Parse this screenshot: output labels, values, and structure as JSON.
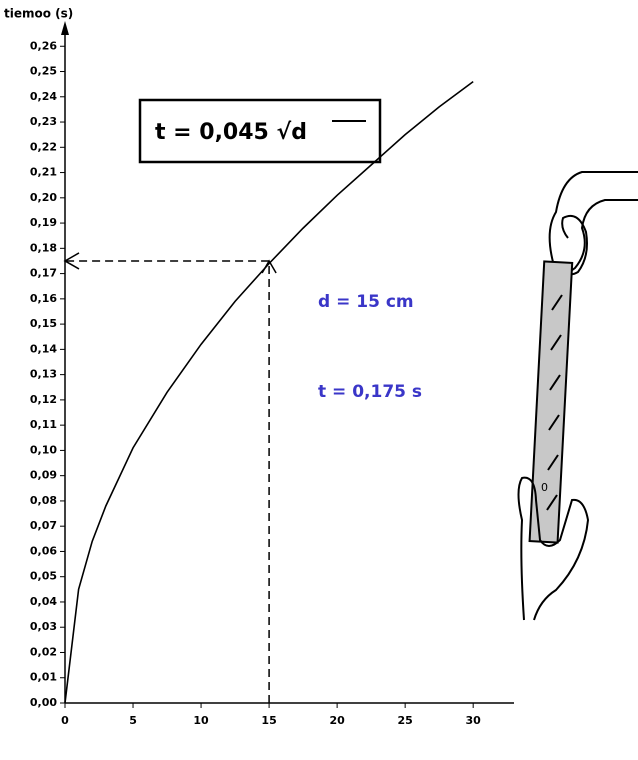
{
  "chart_data": {
    "type": "line",
    "y_label": "tiemoo (s)",
    "x": [
      0,
      1,
      2,
      3,
      5,
      7.5,
      10,
      12.5,
      15,
      17.5,
      20,
      22.5,
      25,
      27.5,
      30
    ],
    "series": [
      {
        "color": "#000000",
        "values": [
          0,
          0.045,
          0.064,
          0.078,
          0.101,
          0.123,
          0.142,
          0.159,
          0.174,
          0.188,
          0.201,
          0.213,
          0.225,
          0.236,
          0.246
        ]
      }
    ],
    "xlim": [
      0,
      33
    ],
    "ylim": [
      0,
      0.27
    ],
    "xticks": [
      0,
      5,
      10,
      15,
      20,
      25,
      30
    ],
    "yticks": [
      {
        "value": 0,
        "label": "0,00"
      },
      {
        "value": 0.01,
        "label": "0,01"
      },
      {
        "value": 0.02,
        "label": "0,02"
      },
      {
        "value": 0.03,
        "label": "0,03"
      },
      {
        "value": 0.04,
        "label": "0,04"
      },
      {
        "value": 0.05,
        "label": "0,05"
      },
      {
        "value": 0.06,
        "label": "0,06"
      },
      {
        "value": 0.07,
        "label": "0,07"
      },
      {
        "value": 0.08,
        "label": "0,08"
      },
      {
        "value": 0.09,
        "label": "0,09"
      },
      {
        "value": 0.1,
        "label": "0,10"
      },
      {
        "value": 0.11,
        "label": "0,11"
      },
      {
        "value": 0.12,
        "label": "0,12"
      },
      {
        "value": 0.13,
        "label": "0,13"
      },
      {
        "value": 0.14,
        "label": "0,14"
      },
      {
        "value": 0.15,
        "label": "0,15"
      },
      {
        "value": 0.16,
        "label": "0,16"
      },
      {
        "value": 0.17,
        "label": "0,17"
      },
      {
        "value": 0.18,
        "label": "0,18"
      },
      {
        "value": 0.19,
        "label": "0,19"
      },
      {
        "value": 0.2,
        "label": "0,20"
      },
      {
        "value": 0.21,
        "label": "0,21"
      },
      {
        "value": 0.22,
        "label": "0,22"
      },
      {
        "value": 0.23,
        "label": "0,23"
      },
      {
        "value": 0.24,
        "label": "0,24"
      },
      {
        "value": 0.25,
        "label": "0,25"
      },
      {
        "value": 0.26,
        "label": "0,26"
      }
    ],
    "marker": {
      "x": 15,
      "y": 0.175
    },
    "formula": "t =  0,045 √d",
    "annotations": [
      "d = 15 cm",
      "t = 0,175 s"
    ],
    "annotation_color": "#3a36c8",
    "ruler_label": "0"
  }
}
